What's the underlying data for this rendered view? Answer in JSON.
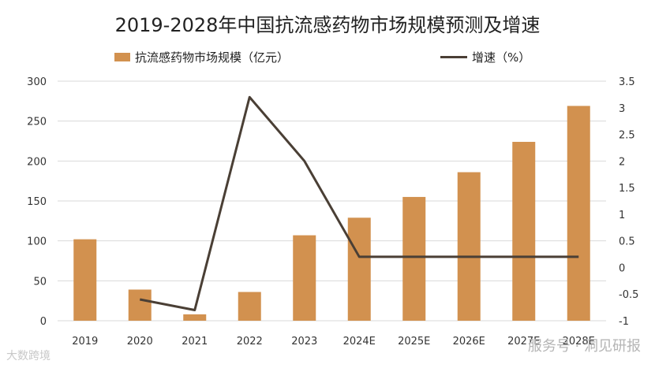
{
  "chart_data": {
    "type": "bar",
    "title": "2019-2028年中国抗流感药物市场规模预测及增速",
    "categories": [
      "2019",
      "2020",
      "2021",
      "2022",
      "2023",
      "2024E",
      "2025E",
      "2026E",
      "2027E",
      "2028E"
    ],
    "series": [
      {
        "name": "抗流感药物市场规模（亿元）",
        "kind": "bar",
        "axis": "left",
        "values": [
          102,
          39,
          8,
          36,
          107,
          129,
          155,
          186,
          224,
          269
        ],
        "color": "#d2914f"
      },
      {
        "name": "增速（%）",
        "kind": "line",
        "axis": "right",
        "values": [
          null,
          -0.6,
          -0.8,
          3.2,
          2.0,
          0.2,
          0.2,
          0.2,
          0.2,
          0.2
        ],
        "color": "#4a3f35"
      }
    ],
    "y_left": {
      "min": 0,
      "max": 300,
      "ticks": [
        "0",
        "50",
        "100",
        "150",
        "200",
        "250",
        "300"
      ]
    },
    "y_right": {
      "min": -1,
      "max": 3.5,
      "ticks": [
        "-1",
        "-0.5",
        "0",
        "0.5",
        "1",
        "1.5",
        "2",
        "2.5",
        "3",
        "3.5"
      ]
    },
    "grid": true,
    "legend_position": "top"
  },
  "watermark": {
    "left": "大数跨境",
    "right": "服务号 · 洞见研报"
  }
}
